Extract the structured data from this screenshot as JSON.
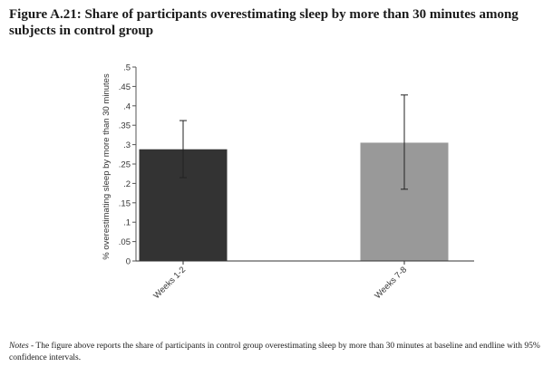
{
  "title": "Figure A.21: Share of participants overestimating sleep by more than 30 minutes among subjects in control group",
  "notes": {
    "label": "Notes",
    "separator": " - ",
    "text": "The figure above reports the share of participants in control group overestimating sleep by more than 30 minutes at baseline and endline with 95% confidence intervals."
  },
  "chart_data": {
    "type": "bar",
    "categories": [
      "Weeks 1-2",
      "Weeks 7-8"
    ],
    "values": [
      0.288,
      0.305
    ],
    "ci_lower": [
      0.215,
      0.185
    ],
    "ci_upper": [
      0.362,
      0.428
    ],
    "bar_colors": [
      "#333333",
      "#999999"
    ],
    "ylabel": "% overestimating sleep by more than 30 minutes",
    "xlabel": "",
    "ylim": [
      0,
      0.5
    ],
    "yticks": [
      0,
      0.05,
      0.1,
      0.15,
      0.2,
      0.25,
      0.3,
      0.35,
      0.4,
      0.45,
      0.5
    ],
    "ytick_labels": [
      "0",
      ".05",
      ".1",
      ".15",
      ".2",
      ".25",
      ".3",
      ".35",
      ".4",
      ".45",
      ".5"
    ],
    "grid": false,
    "legend": "none"
  }
}
